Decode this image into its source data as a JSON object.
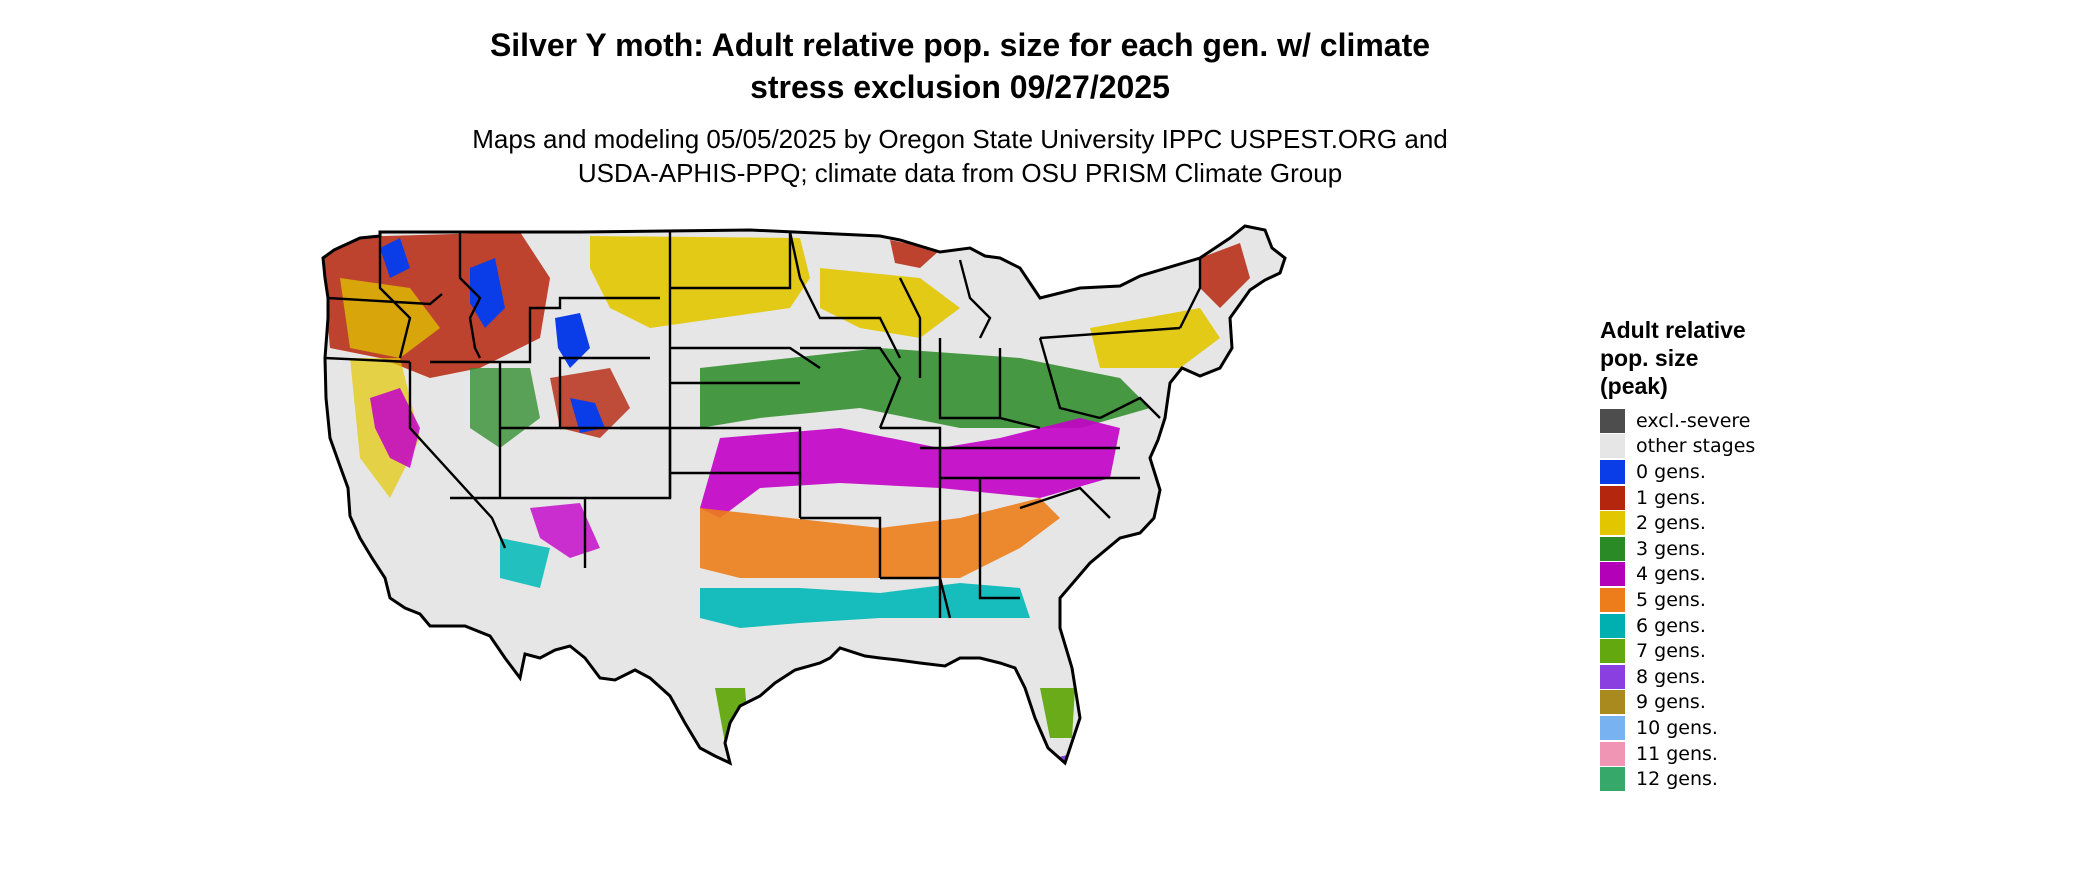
{
  "title": {
    "line1": "Silver Y moth: Adult relative pop. size for each gen. w/ climate",
    "line2": "stress exclusion 09/27/2025"
  },
  "subtitle": {
    "line1": "Maps and modeling 05/05/2025 by Oregon State University IPPC USPEST.ORG and",
    "line2": "USDA-APHIS-PPQ; climate data from OSU PRISM Climate Group"
  },
  "legend": {
    "title_lines": [
      "Adult relative",
      "pop. size",
      "(peak)"
    ],
    "items": [
      {
        "label": "excl.-severe",
        "color": "#4d4d4d"
      },
      {
        "label": "other stages",
        "color": "#e6e6e6"
      },
      {
        "label": "0 gens.",
        "color": "#0a3de8"
      },
      {
        "label": "1 gens.",
        "color": "#b5260e"
      },
      {
        "label": "2 gens.",
        "color": "#e2c700"
      },
      {
        "label": "3 gens.",
        "color": "#2a8a25"
      },
      {
        "label": "4 gens.",
        "color": "#b300b8"
      },
      {
        "label": "5 gens.",
        "color": "#ec7d1a"
      },
      {
        "label": "6 gens.",
        "color": "#00b0b0"
      },
      {
        "label": "7 gens.",
        "color": "#63a80f"
      },
      {
        "label": "8 gens.",
        "color": "#8a3fe0"
      },
      {
        "label": "9 gens.",
        "color": "#a88a1e"
      },
      {
        "label": "10 gens.",
        "color": "#79b2f0"
      },
      {
        "label": "11 gens.",
        "color": "#f096b4"
      },
      {
        "label": "12 gens.",
        "color": "#36a86a"
      }
    ]
  },
  "map": {
    "region": "Conterminous United States",
    "background_color": "#e6e6e6",
    "border_color": "#000000"
  }
}
